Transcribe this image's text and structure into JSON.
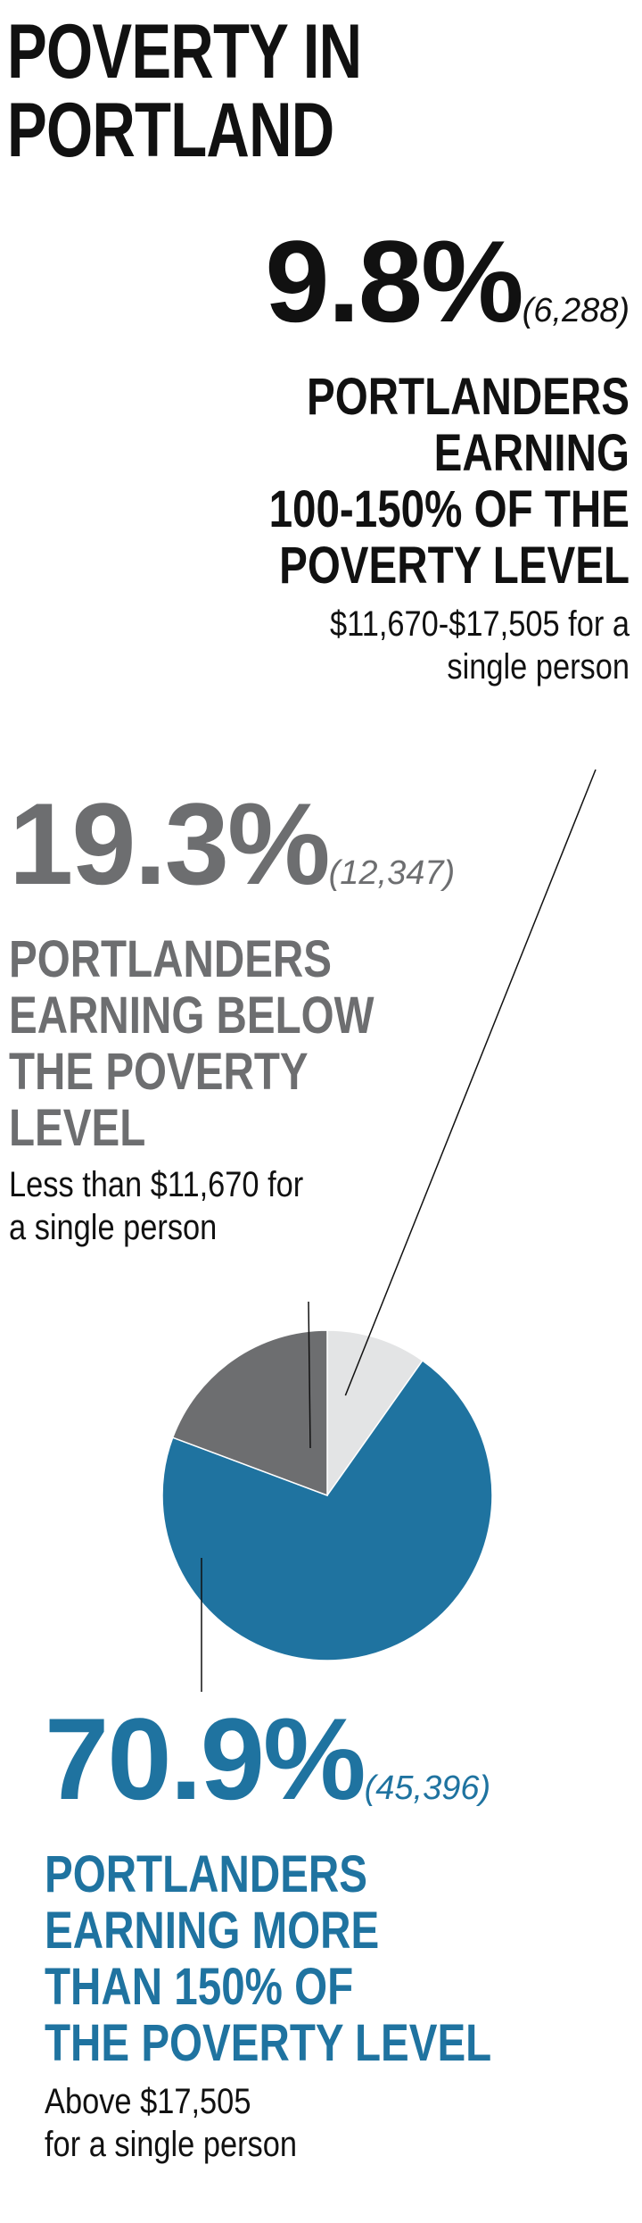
{
  "title": [
    "POVERTY IN",
    "PORTLAND"
  ],
  "colors": {
    "below": "#6d6e70",
    "between": "#e3e4e5",
    "above": "#1f73a0",
    "text": "#111111"
  },
  "chart_data": {
    "type": "pie",
    "title": "POVERTY IN PORTLAND",
    "slices": [
      {
        "key": "between",
        "pct_label": "9.8%",
        "value": 9.8,
        "count_label": "(6,288)",
        "heading": [
          "PORTLANDERS",
          "EARNING",
          "100-150% OF THE",
          "POVERTY LEVEL"
        ],
        "detail": [
          "$11,670-$17,505 for a",
          "single person"
        ],
        "color": "#e3e4e5"
      },
      {
        "key": "below",
        "pct_label": "19.3%",
        "value": 19.3,
        "count_label": "(12,347)",
        "heading": [
          "PORTLANDERS",
          "EARNING BELOW",
          "THE POVERTY",
          "LEVEL"
        ],
        "detail": [
          "Less than $11,670 for",
          "a single person"
        ],
        "color": "#6d6e70"
      },
      {
        "key": "above",
        "pct_label": "70.9%",
        "value": 70.9,
        "count_label": "(45,396)",
        "heading": [
          "PORTLANDERS",
          "EARNING MORE",
          "THAN 150% OF",
          "THE POVERTY LEVEL"
        ],
        "detail": [
          "Above $17,505",
          "for a single person"
        ],
        "color": "#1f73a0"
      }
    ]
  }
}
